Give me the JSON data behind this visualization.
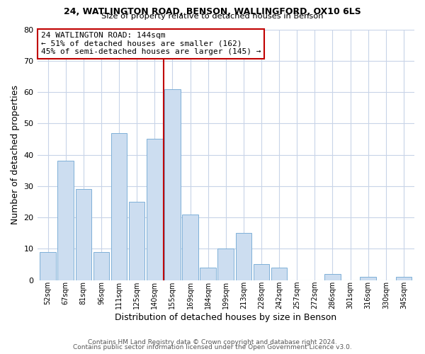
{
  "title1": "24, WATLINGTON ROAD, BENSON, WALLINGFORD, OX10 6LS",
  "title2": "Size of property relative to detached houses in Benson",
  "xlabel": "Distribution of detached houses by size in Benson",
  "ylabel": "Number of detached properties",
  "bar_labels": [
    "52sqm",
    "67sqm",
    "81sqm",
    "96sqm",
    "111sqm",
    "125sqm",
    "140sqm",
    "155sqm",
    "169sqm",
    "184sqm",
    "199sqm",
    "213sqm",
    "228sqm",
    "242sqm",
    "257sqm",
    "272sqm",
    "286sqm",
    "301sqm",
    "316sqm",
    "330sqm",
    "345sqm"
  ],
  "bar_values": [
    9,
    38,
    29,
    9,
    47,
    25,
    45,
    61,
    21,
    4,
    10,
    15,
    5,
    4,
    0,
    0,
    2,
    0,
    1,
    0,
    1
  ],
  "bar_color": "#ccddf0",
  "bar_edgecolor": "#7eb0d8",
  "vline_index": 7,
  "vline_color": "#c00000",
  "annotation_line1": "24 WATLINGTON ROAD: 144sqm",
  "annotation_line2": "← 51% of detached houses are smaller (162)",
  "annotation_line3": "45% of semi-detached houses are larger (145) →",
  "box_edgecolor": "#c00000",
  "ylim": [
    0,
    80
  ],
  "yticks": [
    0,
    10,
    20,
    30,
    40,
    50,
    60,
    70,
    80
  ],
  "footer1": "Contains HM Land Registry data © Crown copyright and database right 2024.",
  "footer2": "Contains public sector information licensed under the Open Government Licence v3.0.",
  "bg_color": "#ffffff",
  "grid_color": "#c8d4e8"
}
